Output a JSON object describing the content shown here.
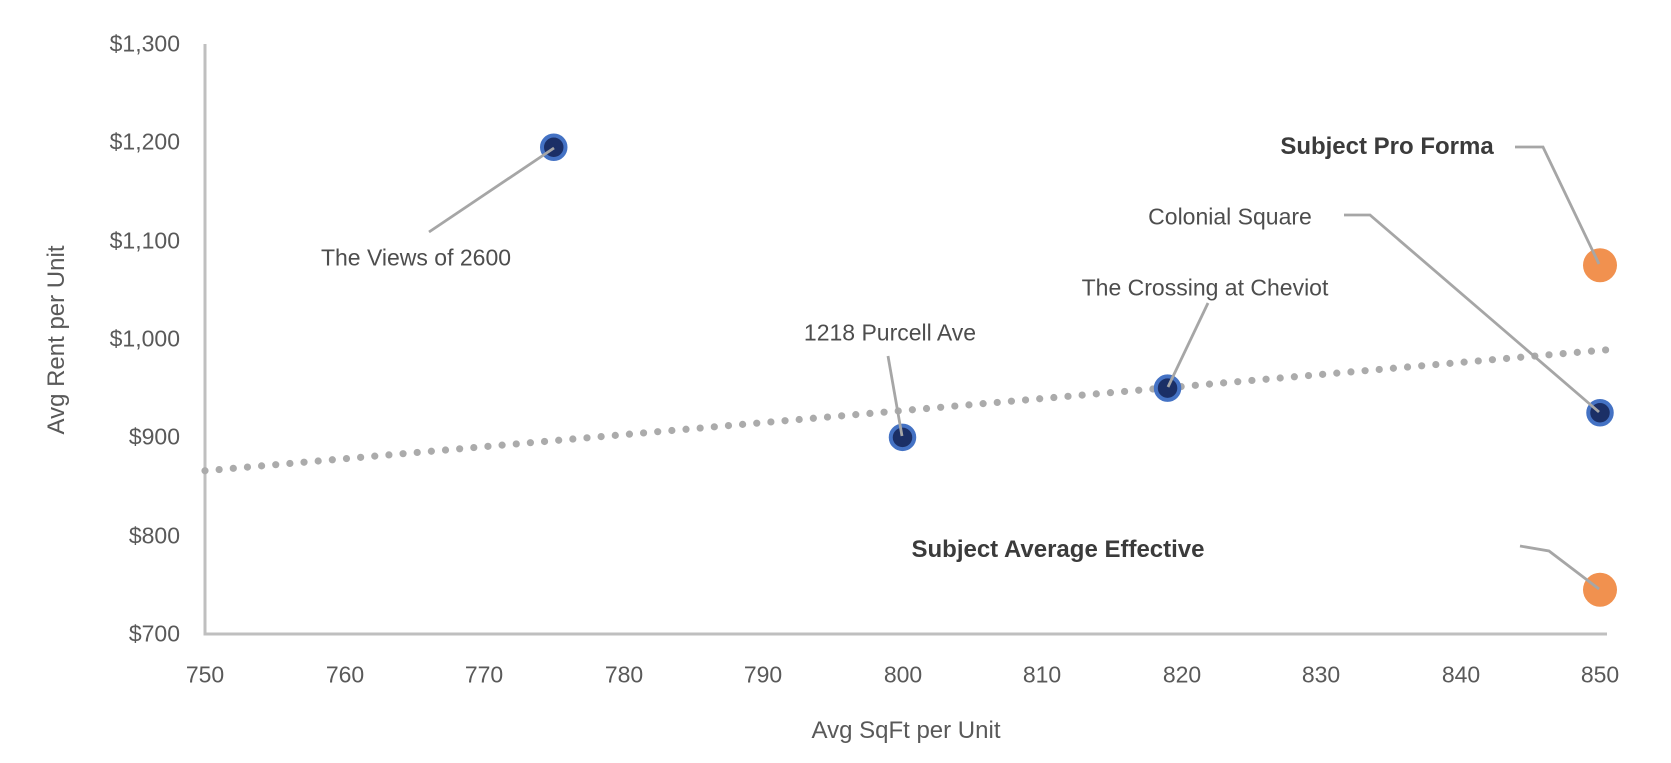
{
  "chart_data": {
    "type": "scatter",
    "title": "",
    "xlabel": "Avg SqFt per Unit",
    "ylabel": "Avg Rent per Unit",
    "xlim": [
      750,
      850
    ],
    "ylim": [
      700,
      1300
    ],
    "grid": false,
    "legend": "none",
    "x_ticks": [
      {
        "value": 750,
        "label": "750"
      },
      {
        "value": 760,
        "label": "760"
      },
      {
        "value": 770,
        "label": "770"
      },
      {
        "value": 780,
        "label": "780"
      },
      {
        "value": 790,
        "label": "790"
      },
      {
        "value": 800,
        "label": "800"
      },
      {
        "value": 810,
        "label": "810"
      },
      {
        "value": 820,
        "label": "820"
      },
      {
        "value": 830,
        "label": "830"
      },
      {
        "value": 840,
        "label": "840"
      },
      {
        "value": 850,
        "label": "850"
      }
    ],
    "y_ticks": [
      {
        "value": 1300,
        "label": "$1,300"
      },
      {
        "value": 1200,
        "label": "$1,200"
      },
      {
        "value": 1100,
        "label": "$1,100"
      },
      {
        "value": 1000,
        "label": "$1,000"
      },
      {
        "value": 900,
        "label": "$900"
      },
      {
        "value": 800,
        "label": "$800"
      },
      {
        "value": 700,
        "label": "$700"
      }
    ],
    "series": [
      {
        "name": "comparable-properties",
        "marker": "circle",
        "fill": "#1B2F66",
        "border": "#4472C4",
        "points": [
          {
            "label": "The Views of 2600",
            "x": 775,
            "y": 1195
          },
          {
            "label": "1218 Purcell Ave",
            "x": 800,
            "y": 900
          },
          {
            "label": "The Crossing at Cheviot",
            "x": 819,
            "y": 950
          },
          {
            "label": "Colonial Square",
            "x": 850,
            "y": 925
          }
        ]
      },
      {
        "name": "subject-property",
        "marker": "circle",
        "fill": "#F1914F",
        "border": "none",
        "points": [
          {
            "label": "Subject Pro Forma",
            "x": 850,
            "y": 1075
          },
          {
            "label": "Subject Average Effective",
            "x": 850,
            "y": 745
          }
        ]
      }
    ],
    "trendline": {
      "style": "dotted",
      "color": "#ABABAB",
      "x1": 750,
      "y1": 866,
      "x2": 850.5,
      "y2": 989
    }
  },
  "colors": {
    "axis_line": "#BFBFBF",
    "tick_text": "#595959",
    "label_text": "#4D4D4D",
    "bold_label_text": "#3B3B3B",
    "leader_line": "#A6A6A6",
    "background": "#FFFFFF",
    "comp_marker_fill": "#1B2F66",
    "comp_marker_border": "#4472C4",
    "subject_marker": "#F1914F",
    "trendline": "#ABABAB"
  }
}
